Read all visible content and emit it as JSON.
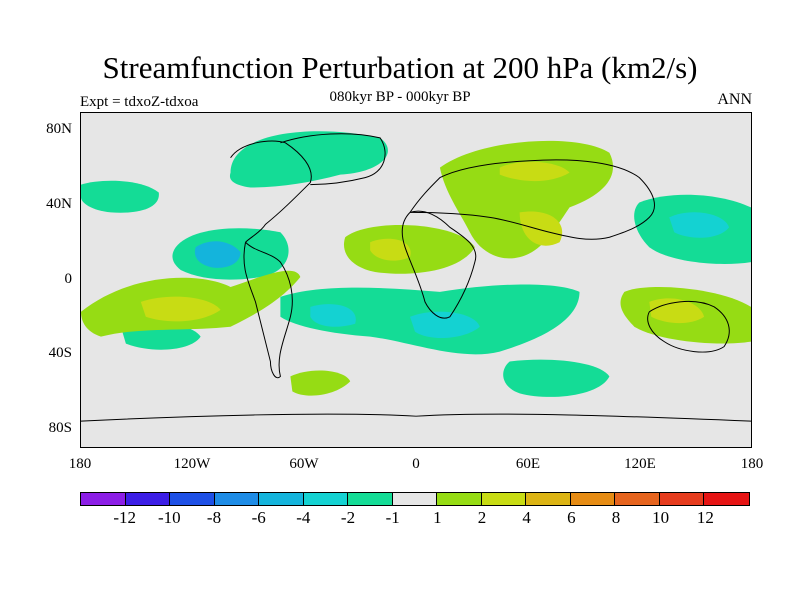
{
  "title": "Streamfunction Perturbation at 200 hPa (km2/s)",
  "subtitle": "080kyr BP - 000kyr BP",
  "expt_label": "Expt = tdxoZ-tdxoa",
  "season": "ANN",
  "lat_ticks": [
    "80N",
    "40N",
    "0",
    "40S",
    "80S"
  ],
  "lon_ticks": [
    "180",
    "120W",
    "60W",
    "0",
    "60E",
    "120E",
    "180"
  ],
  "colorbar": {
    "labels": [
      "-12",
      "-10",
      "-8",
      "-6",
      "-4",
      "-2",
      "-1",
      "1",
      "2",
      "4",
      "6",
      "8",
      "10",
      "12"
    ],
    "colors": [
      "#8c1ee6",
      "#3c1ee6",
      "#1e50e6",
      "#1e8ce6",
      "#14b4dc",
      "#14d2d2",
      "#14dc96",
      "#e6e6e6",
      "#96dc14",
      "#c8dc14",
      "#dcb414",
      "#e68c14",
      "#e6641e",
      "#e63c1e",
      "#e61414"
    ]
  },
  "colors": {
    "background": "#e6e6e6",
    "neg_weak": "#14dc96",
    "neg_mid": "#14d2d2",
    "neg_strong": "#14b4dc",
    "pos_weak": "#96dc14",
    "pos_mid": "#c8dc14",
    "pos_strong": "#dcb414",
    "coast": "#000000"
  }
}
